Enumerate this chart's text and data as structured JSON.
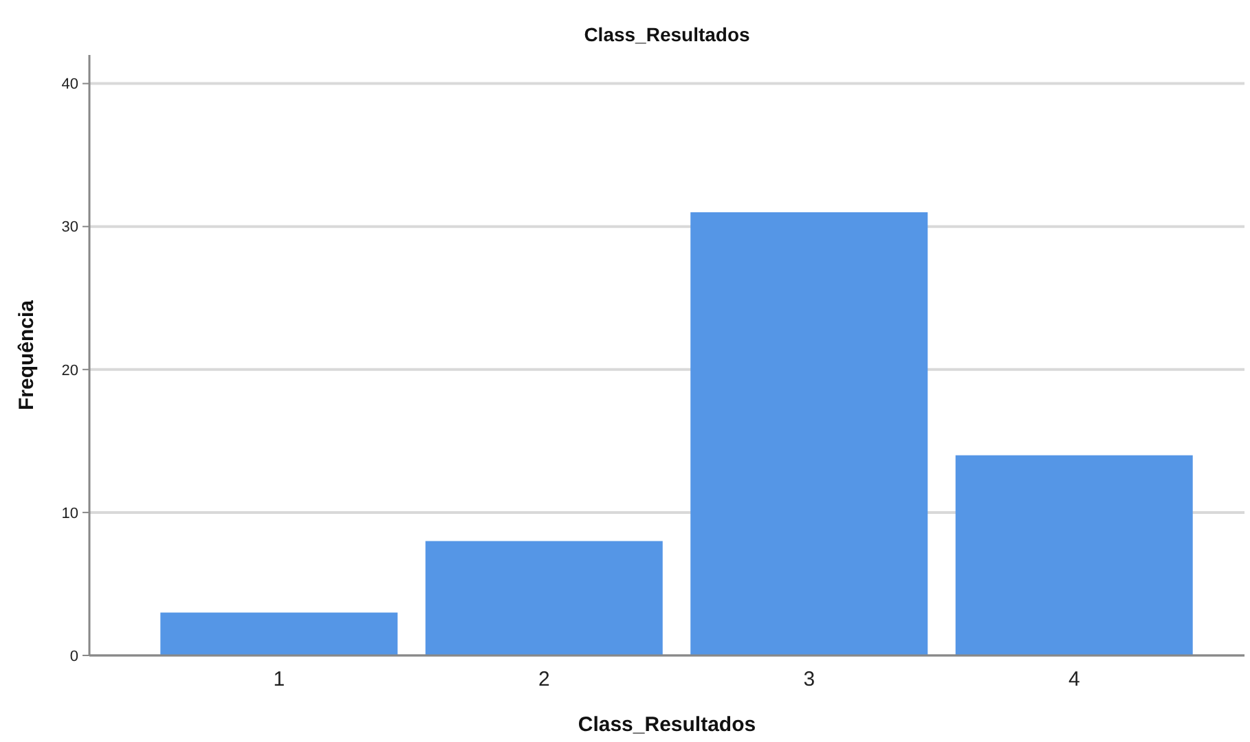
{
  "chart_data": {
    "type": "bar",
    "title": "Class_Resultados",
    "xlabel": "Class_Resultados",
    "ylabel": "Frequência",
    "categories": [
      "1",
      "2",
      "3",
      "4"
    ],
    "values": [
      3,
      8,
      31,
      14
    ],
    "color": "#5596e6",
    "ylim": [
      0,
      42
    ],
    "yticks": [
      0,
      10,
      20,
      30,
      40
    ],
    "grid": "y"
  }
}
